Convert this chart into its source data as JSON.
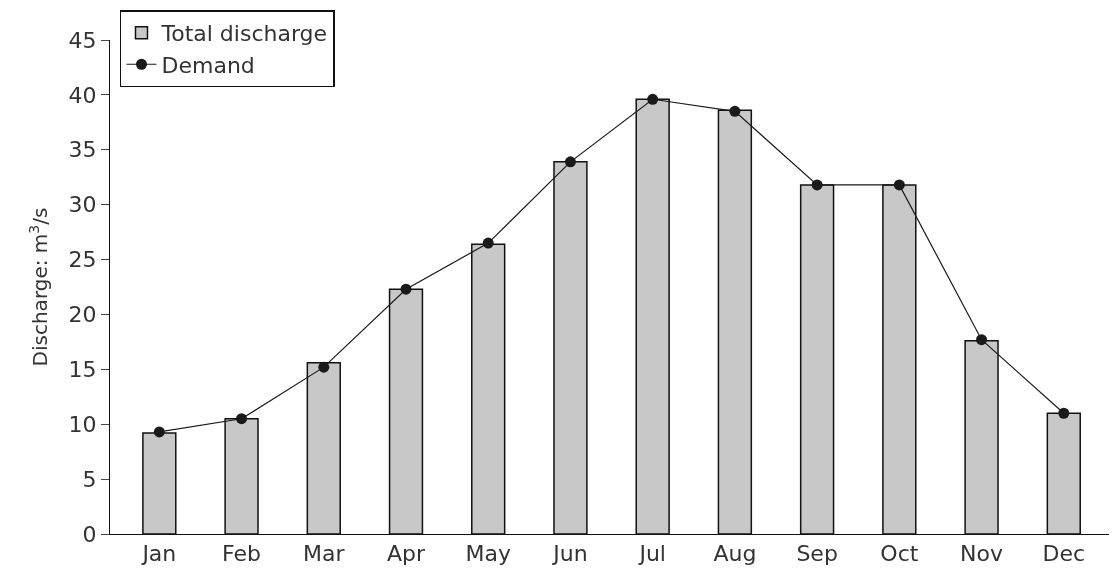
{
  "chart_data": {
    "type": "bar",
    "ylabel": "Discharge: m$^{3}$/s",
    "categories": [
      "Jan",
      "Feb",
      "Mar",
      "Apr",
      "May",
      "Jun",
      "Jul",
      "Aug",
      "Sep",
      "Oct",
      "Nov",
      "Dec"
    ],
    "series": [
      {
        "name": "Total discharge",
        "color": "#c8c8c8",
        "values": [
          9.2,
          10.5,
          15.6,
          22.3,
          26.4,
          33.9,
          39.6,
          38.6,
          31.8,
          31.8,
          17.6,
          11.0
        ]
      },
      {
        "name": "Demand",
        "type": "line",
        "color": "#1a1a1a",
        "marker": "circle",
        "values": [
          9.3,
          10.5,
          15.2,
          22.3,
          26.5,
          33.9,
          39.6,
          38.5,
          31.8,
          31.8,
          17.7,
          11.0
        ]
      }
    ],
    "ylim": [
      0,
      45
    ],
    "yticks": [
      0,
      5,
      10,
      15,
      20,
      25,
      30,
      35,
      40,
      45
    ],
    "legend": "top left"
  }
}
